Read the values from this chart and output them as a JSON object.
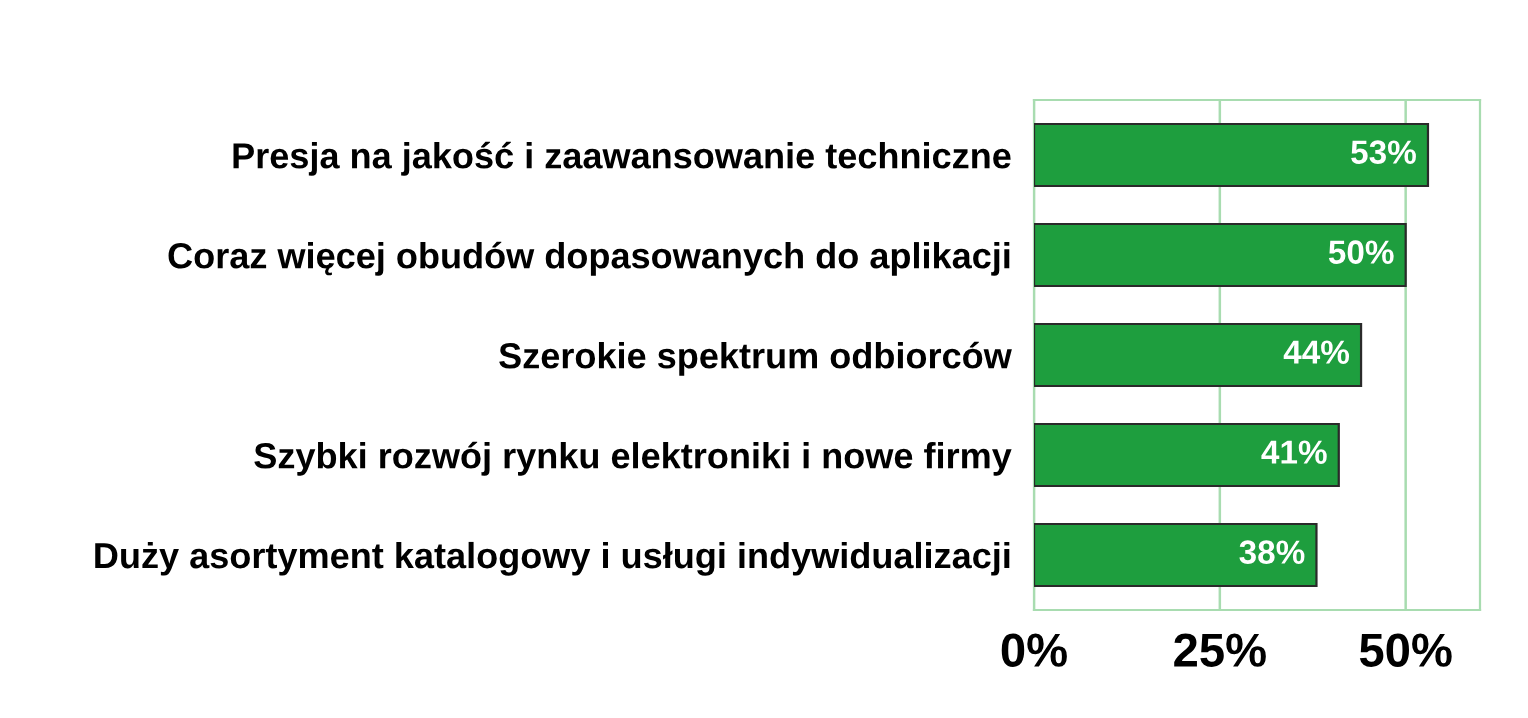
{
  "chart_data": {
    "type": "bar",
    "orientation": "horizontal",
    "categories": [
      "Presja na jakość i zaawansowanie techniczne",
      "Coraz więcej obudów dopasowanych do aplikacji",
      "Szerokie spektrum odbiorców",
      "Szybki rozwój rynku elektroniki i nowe firmy",
      "Duży asortyment katalogowy i usługi indywidualizacji"
    ],
    "values": [
      53,
      50,
      44,
      41,
      38
    ],
    "value_labels": [
      "53%",
      "50%",
      "44%",
      "41%",
      "38%"
    ],
    "color": "#1e9e3e",
    "xlim": [
      0,
      60
    ],
    "xticks": [
      {
        "value": 0,
        "label": "0%"
      },
      {
        "value": 25,
        "label": "25%"
      },
      {
        "value": 50,
        "label": "50%"
      }
    ],
    "grid": "x"
  }
}
